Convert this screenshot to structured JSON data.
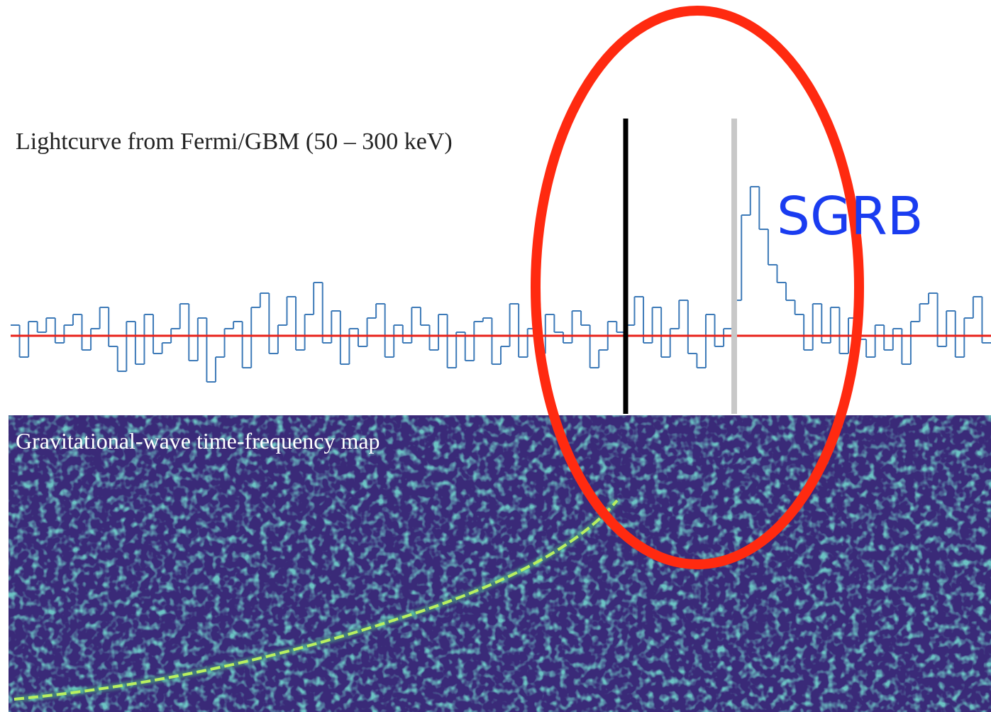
{
  "chart_data": {
    "type": "step",
    "title": "Lightcurve from Fermi/GBM (50 – 300 keV)",
    "color": "#3d7ab8",
    "baseline_color": "#e8221a",
    "baseline": 0,
    "ylim": [
      -2,
      5
    ],
    "values": [
      0.3,
      -0.6,
      0.4,
      0.1,
      0.5,
      -0.2,
      0.3,
      0.6,
      -0.4,
      0.2,
      0.8,
      -0.3,
      -1.0,
      0.4,
      -0.8,
      0.6,
      -0.5,
      -0.2,
      0.2,
      0.9,
      -0.7,
      0.5,
      -1.3,
      -0.6,
      0.2,
      0.4,
      -0.9,
      0.8,
      1.2,
      -0.5,
      0.3,
      1.1,
      -0.4,
      0.6,
      1.5,
      -0.2,
      0.7,
      -0.8,
      0.2,
      -0.3,
      0.5,
      0.9,
      -0.6,
      0.3,
      -0.2,
      0.8,
      0.3,
      -0.4,
      0.6,
      -0.9,
      0.1,
      -0.7,
      0.4,
      0.5,
      -0.8,
      -0.3,
      0.9,
      -0.6,
      0.2,
      -0.5,
      0.6,
      0.1,
      -0.2,
      0.7,
      0.3,
      -0.9,
      -0.4,
      0.4,
      0.1,
      0.3,
      1.1,
      -0.2,
      0.8,
      -0.6,
      0.2,
      1.0,
      -0.5,
      -0.9,
      0.6,
      -0.3,
      0.2,
      1.0,
      3.4,
      4.2,
      3.0,
      2.0,
      1.5,
      1.0,
      0.6,
      -0.4,
      0.9,
      -0.2,
      0.8,
      -0.5,
      0.5,
      -0.1,
      -0.6,
      0.3,
      -0.4,
      0.2,
      -0.8,
      0.4,
      0.9,
      1.2,
      -0.3,
      0.7,
      -0.6,
      0.5,
      1.1,
      -0.2
    ]
  },
  "map_title": "Gravitational-wave time-frequency map",
  "annotation": "SGRB"
}
